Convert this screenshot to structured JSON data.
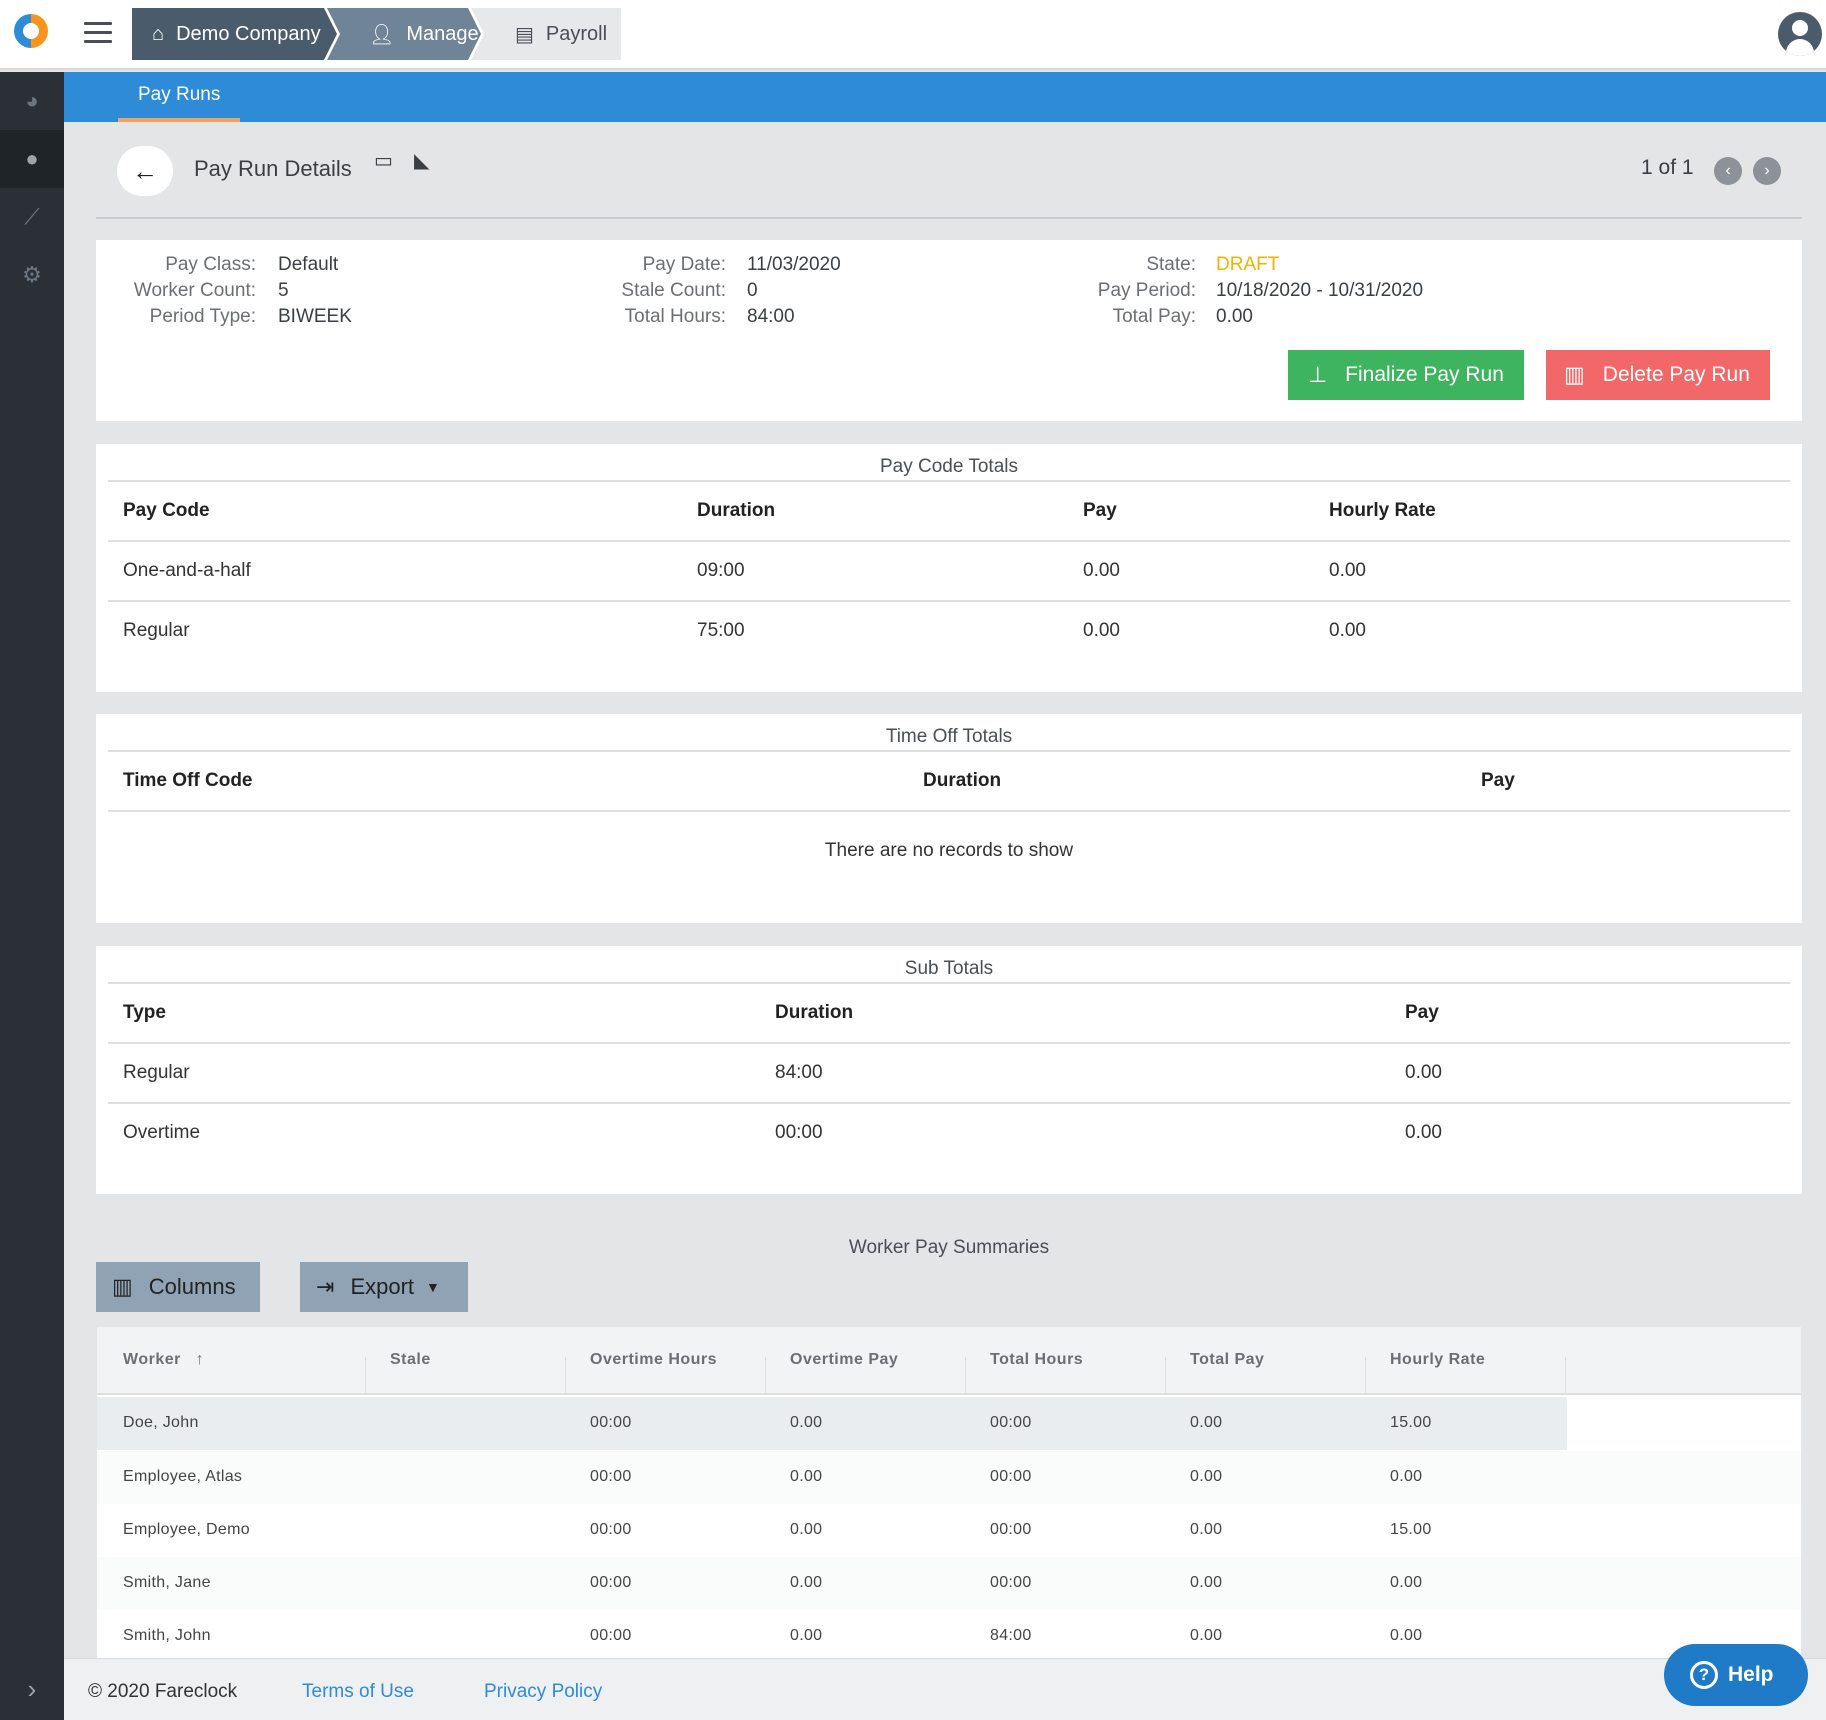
{
  "topbar": {
    "breadcrumbs": [
      {
        "label": "Demo Company",
        "icon": "home-icon"
      },
      {
        "label": "Manage",
        "icon": "user-tie-icon"
      },
      {
        "label": "Payroll",
        "icon": "money-check-icon"
      }
    ]
  },
  "sidebar": {
    "items": [
      {
        "icon": "dashboard-icon"
      },
      {
        "icon": "user-icon"
      },
      {
        "icon": "chart-line-icon"
      },
      {
        "icon": "gear-icon"
      }
    ],
    "toggle_icon": "chevron-right-icon"
  },
  "subnav": {
    "tab": "Pay Runs"
  },
  "header": {
    "title": "Pay Run Details",
    "pager": "1 of 1"
  },
  "summary": {
    "pay_class_label": "Pay Class:",
    "pay_class": "Default",
    "worker_count_label": "Worker Count:",
    "worker_count": "5",
    "period_type_label": "Period Type:",
    "period_type": "BIWEEK",
    "pay_date_label": "Pay Date:",
    "pay_date": "11/03/2020",
    "stale_count_label": "Stale Count:",
    "stale_count": "0",
    "total_hours_label": "Total Hours:",
    "total_hours": "84:00",
    "state_label": "State:",
    "state": "DRAFT",
    "pay_period_label": "Pay Period:",
    "pay_period": "10/18/2020 - 10/31/2020",
    "total_pay_label": "Total Pay:",
    "total_pay": "0.00",
    "finalize_label": "Finalize Pay Run",
    "delete_label": "Delete Pay Run",
    "state_color": "#f0b400"
  },
  "pay_code_totals": {
    "title": "Pay Code Totals",
    "headers": [
      "Pay Code",
      "Duration",
      "Pay",
      "Hourly Rate"
    ],
    "rows": [
      [
        "One-and-a-half",
        "09:00",
        "0.00",
        "0.00"
      ],
      [
        "Regular",
        "75:00",
        "0.00",
        "0.00"
      ]
    ]
  },
  "time_off_totals": {
    "title": "Time Off Totals",
    "headers": [
      "Time Off Code",
      "Duration",
      "Pay"
    ],
    "empty": "There are no records to show"
  },
  "sub_totals": {
    "title": "Sub Totals",
    "headers": [
      "Type",
      "Duration",
      "Pay"
    ],
    "rows": [
      [
        "Regular",
        "84:00",
        "0.00"
      ],
      [
        "Overtime",
        "00:00",
        "0.00"
      ]
    ]
  },
  "worker_pay": {
    "title": "Worker Pay Summaries",
    "columns_label": "Columns",
    "export_label": "Export",
    "sort_indicator": "↑",
    "headers": [
      "Worker",
      "Stale",
      "Overtime Hours",
      "Overtime Pay",
      "Total Hours",
      "Total Pay",
      "Hourly Rate"
    ],
    "rows": [
      [
        "Doe, John",
        "",
        "00:00",
        "0.00",
        "00:00",
        "0.00",
        "15.00"
      ],
      [
        "Employee, Atlas",
        "",
        "00:00",
        "0.00",
        "00:00",
        "0.00",
        "0.00"
      ],
      [
        "Employee, Demo",
        "",
        "00:00",
        "0.00",
        "00:00",
        "0.00",
        "15.00"
      ],
      [
        "Smith, Jane",
        "",
        "00:00",
        "0.00",
        "00:00",
        "0.00",
        "0.00"
      ],
      [
        "Smith, John",
        "",
        "00:00",
        "0.00",
        "84:00",
        "0.00",
        "0.00"
      ]
    ]
  },
  "footer": {
    "copyright": "© 2020 Fareclock",
    "terms": "Terms of Use",
    "privacy": "Privacy Policy",
    "help": "Help"
  },
  "colors": {
    "accent": "#2e8bd8",
    "finalize": "#3fb45f",
    "delete": "#f26768",
    "sidebar": "#2a3036"
  }
}
